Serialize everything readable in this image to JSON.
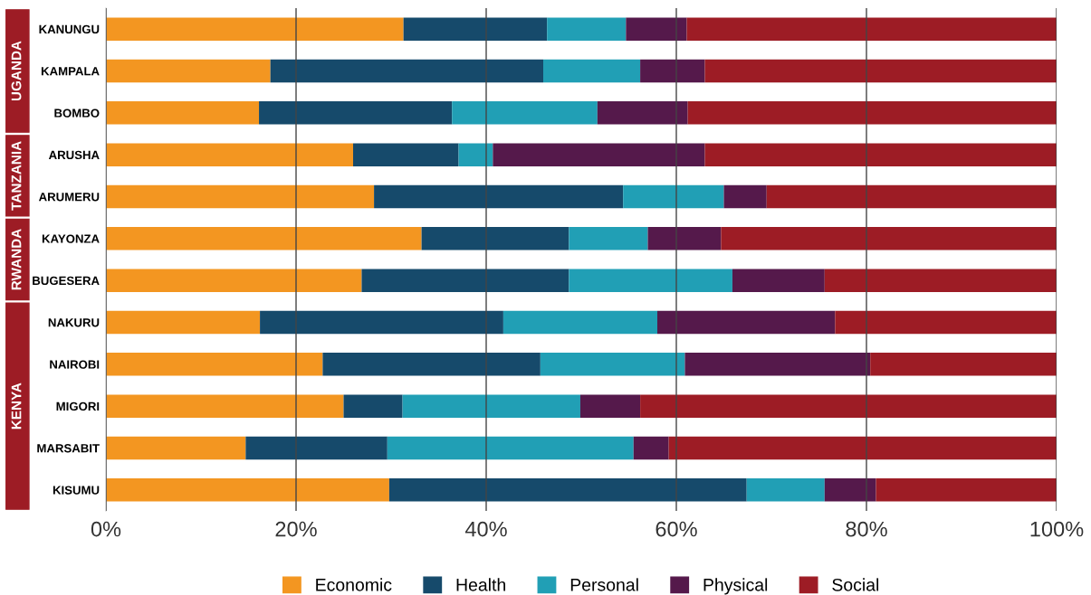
{
  "chart_data": {
    "type": "bar",
    "orientation": "horizontal",
    "stacked": true,
    "categories": [
      "KANUNGU",
      "KAMPALA",
      "BOMBO",
      "ARUSHA",
      "ARUMERU",
      "KAYONZA",
      "BUGESERA",
      "NAKURU",
      "NAIROBI",
      "MIGORI",
      "MARSABIT",
      "KISUMU"
    ],
    "series": [
      {
        "name": "Economic",
        "color": "#f39621",
        "values": [
          31.3,
          17.3,
          16.1,
          26.0,
          28.2,
          33.2,
          26.9,
          16.2,
          22.8,
          25.0,
          14.7,
          29.8
        ]
      },
      {
        "name": "Health",
        "color": "#164a6b",
        "values": [
          15.1,
          28.7,
          20.3,
          11.1,
          26.2,
          15.5,
          21.8,
          25.6,
          22.9,
          6.2,
          14.9,
          37.6
        ]
      },
      {
        "name": "Personal",
        "color": "#219fb5",
        "values": [
          8.3,
          10.2,
          15.3,
          3.6,
          10.6,
          8.3,
          17.2,
          16.2,
          15.2,
          18.7,
          25.9,
          8.2
        ]
      },
      {
        "name": "Physical",
        "color": "#55194b",
        "values": [
          6.4,
          6.8,
          9.5,
          22.3,
          4.5,
          7.7,
          9.7,
          18.7,
          19.5,
          6.3,
          3.7,
          5.4
        ]
      },
      {
        "name": "Social",
        "color": "#9d1c25",
        "values": [
          38.9,
          37.0,
          38.8,
          37.0,
          30.5,
          35.3,
          24.4,
          23.3,
          19.6,
          43.8,
          40.8,
          19.0
        ]
      }
    ],
    "xlim": [
      0,
      100
    ],
    "xticks": [
      {
        "value": 0,
        "label": "0%"
      },
      {
        "value": 20,
        "label": "20%"
      },
      {
        "value": 40,
        "label": "40%"
      },
      {
        "value": 60,
        "label": "60%"
      },
      {
        "value": 80,
        "label": "80%"
      },
      {
        "value": 100,
        "label": "100%"
      }
    ],
    "grid": "x",
    "legend": "bottom",
    "annotations": [
      "UGANDA",
      "TANZANIA",
      "RWANDA",
      "KENYA"
    ]
  }
}
